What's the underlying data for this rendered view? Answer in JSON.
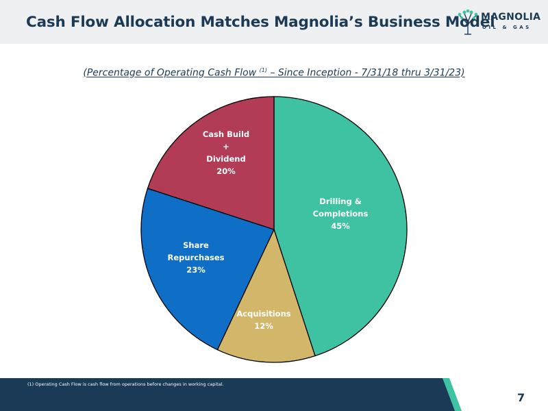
{
  "header": {
    "title": "Cash Flow Allocation Matches Magnolia’s Business Model",
    "logo_word": "MAGNOLIA",
    "logo_sub": "OIL & GAS"
  },
  "subtitle": {
    "text_before": "(Percentage of Operating Cash Flow ",
    "superscript": "(1)",
    "text_after": " – Since Inception - 7/31/18 thru 3/31/23)"
  },
  "chart_data": {
    "type": "pie",
    "slices": [
      {
        "label": [
          "Drilling &",
          "Completions"
        ],
        "value": 45,
        "value_label": "45%",
        "color": "#3fc2a1"
      },
      {
        "label": [
          "Acquisitions"
        ],
        "value": 12,
        "value_label": "12%",
        "color": "#d2b76a"
      },
      {
        "label": [
          "Share",
          "Repurchases"
        ],
        "value": 23,
        "value_label": "23%",
        "color": "#0f6fc6"
      },
      {
        "label": [
          "Cash Build",
          "+",
          "Dividend"
        ],
        "value": 20,
        "value_label": "20%",
        "color": "#b23c56"
      }
    ]
  },
  "footer": {
    "footnote": "(1)   Operating Cash Flow is cash flow from operations before changes in working capital.",
    "page_number": "7",
    "bar_color": "#1b3a55",
    "accent_color": "#3fc2a1"
  }
}
